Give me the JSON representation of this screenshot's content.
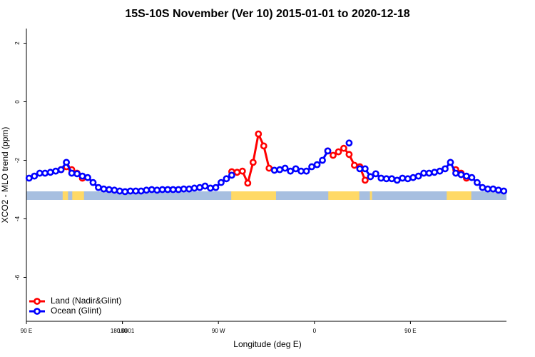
{
  "chart_data": {
    "type": "line",
    "title": "15S-10S November (Ver 10)   2015-01-01 to 2020-12-18",
    "x_label": "Longitude (deg E)",
    "y_label": "XCO2 - MLO trend (ppm)",
    "x": [
      92.5,
      97.5,
      102.5,
      107.5,
      112.5,
      117.5,
      122.5,
      127.5,
      132.5,
      137.5,
      142.5,
      147.5,
      152.5,
      157.5,
      162.5,
      167.5,
      172.5,
      177.5,
      182.5,
      187.5,
      192.5,
      197.5,
      202.5,
      207.5,
      212.5,
      217.5,
      222.5,
      227.5,
      232.5,
      237.5,
      242.5,
      247.5,
      252.5,
      257.5,
      262.5,
      267.5,
      272.5,
      277.5,
      282.5,
      287.5,
      292.5,
      297.5,
      302.5,
      307.5,
      312.5,
      317.5,
      322.5,
      327.5,
      332.5,
      337.5,
      342.5,
      347.5,
      352.5,
      357.5,
      362.5,
      367.5,
      372.5,
      377.5,
      382.5,
      387.5,
      392.5,
      397.5,
      402.5,
      407.5,
      412.5,
      417.5,
      422.5,
      427.5,
      432.5,
      437.5,
      442.5,
      447.5,
      452.5,
      457.5,
      462.5,
      467.5,
      472.5,
      477.5,
      482.5,
      487.5,
      492.5,
      497.5,
      502.5,
      507.5,
      512.5,
      517.5,
      522.5,
      527.5,
      532.5,
      537.5
    ],
    "series": [
      {
        "name": "Land (Nadir&Glint)",
        "color": "#ff0000",
        "values": [
          null,
          null,
          null,
          null,
          null,
          null,
          -2.32,
          -2.22,
          -2.32,
          -2.44,
          -2.61,
          null,
          null,
          null,
          null,
          null,
          null,
          null,
          null,
          null,
          null,
          null,
          null,
          null,
          null,
          null,
          null,
          null,
          null,
          null,
          null,
          null,
          null,
          null,
          null,
          null,
          null,
          null,
          -2.39,
          -2.41,
          -2.37,
          -2.78,
          -2.07,
          -1.1,
          -1.51,
          -2.27,
          null,
          null,
          null,
          null,
          null,
          null,
          null,
          null,
          null,
          null,
          -1.68,
          -1.83,
          -1.71,
          -1.59,
          -1.8,
          -2.17,
          -2.22,
          -2.68,
          null,
          null,
          null,
          null,
          null,
          null,
          null,
          null,
          null,
          null,
          null,
          null,
          null,
          null,
          null,
          null,
          -2.32,
          -2.44,
          -2.61,
          null,
          null,
          null,
          null,
          null,
          null,
          null
        ]
      },
      {
        "name": "Ocean (Glint)",
        "color": "#0000ff",
        "values": [
          -2.61,
          -2.54,
          -2.44,
          -2.44,
          -2.41,
          -2.37,
          -2.32,
          -2.07,
          -2.44,
          -2.46,
          -2.54,
          -2.59,
          -2.76,
          -2.93,
          -2.98,
          -3.0,
          -3.02,
          -3.05,
          -3.07,
          -3.05,
          -3.05,
          -3.05,
          -3.02,
          -3.0,
          -3.02,
          -3.0,
          -3.0,
          -3.0,
          -3.0,
          -2.98,
          -2.98,
          -2.95,
          -2.93,
          -2.88,
          -2.95,
          -2.93,
          -2.76,
          -2.63,
          -2.51,
          null,
          null,
          null,
          null,
          null,
          null,
          null,
          -2.34,
          -2.32,
          -2.27,
          -2.37,
          -2.29,
          -2.37,
          -2.37,
          -2.22,
          -2.15,
          -2.0,
          -1.68,
          null,
          null,
          null,
          -1.41,
          null,
          -2.29,
          -2.29,
          -2.56,
          -2.46,
          -2.61,
          -2.63,
          -2.63,
          -2.68,
          -2.61,
          -2.63,
          -2.59,
          -2.54,
          -2.44,
          -2.44,
          -2.41,
          -2.37,
          -2.29,
          -2.07,
          -2.44,
          -2.49,
          -2.54,
          -2.59,
          -2.76,
          -2.93,
          -2.98,
          -2.98,
          -3.02,
          -3.05
        ]
      }
    ],
    "land_spans": [
      [
        124,
        129
      ],
      [
        133,
        144
      ],
      [
        282,
        324
      ],
      [
        373,
        402
      ],
      [
        412,
        414
      ],
      [
        484,
        507
      ]
    ],
    "land_color": "#ffd966",
    "ocean_color": "#a7bfe0",
    "xlim": [
      90,
      540
    ],
    "xticks": [
      {
        "value": 90,
        "label": "90 E"
      },
      180,
      {
        "value": 270,
        "label": "90 W"
      },
      {
        "value": 360,
        "label": "0"
      },
      {
        "value": 450,
        "label": "90 E"
      },
      180.0001
    ],
    "ylim": [
      -7.5,
      2.5
    ],
    "yticks": [
      2,
      0,
      -2,
      -4,
      -6
    ],
    "legend": "bottom-left"
  }
}
